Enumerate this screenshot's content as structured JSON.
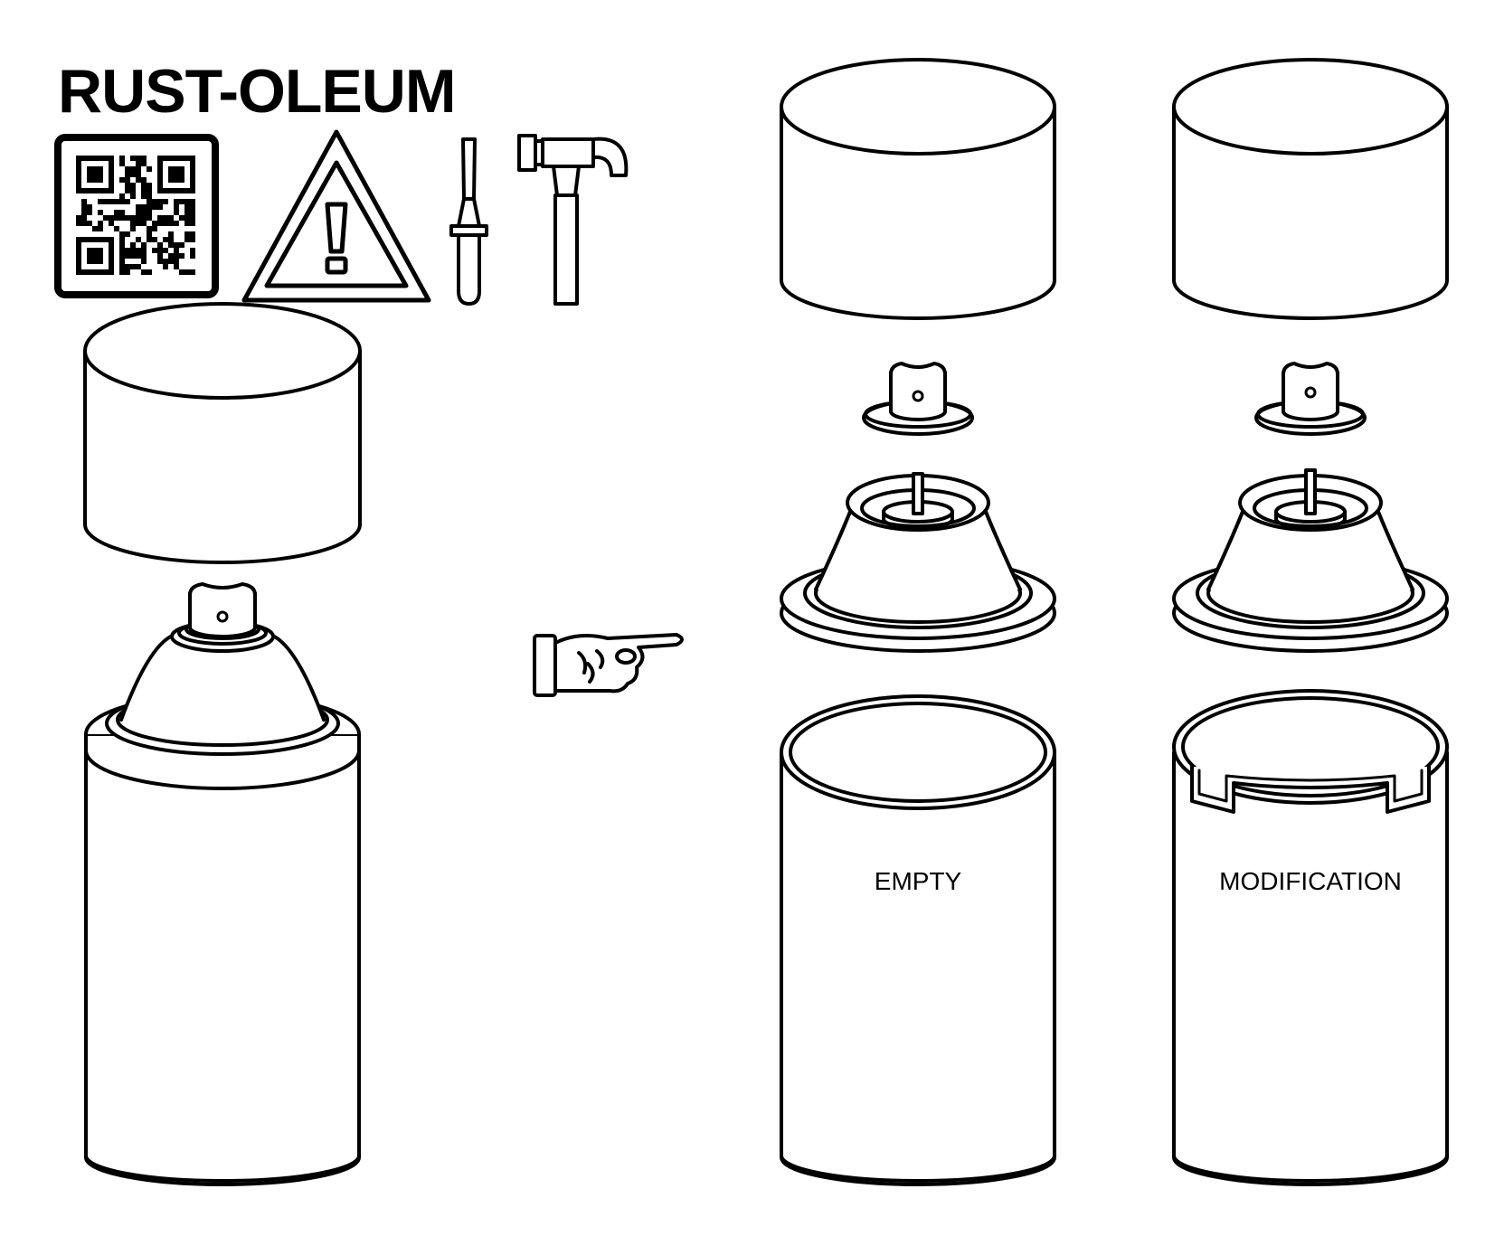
{
  "brand": {
    "name": "RUST-OLEUM"
  },
  "labels": {
    "empty": "EMPTY",
    "modification": "MODIFICATION"
  },
  "icons": [
    "qr-code-icon",
    "warning-triangle-icon",
    "screwdriver-icon",
    "hammer-icon",
    "pointing-hand-icon"
  ],
  "colors": {
    "stroke": "#000000",
    "fill": "#ffffff"
  }
}
